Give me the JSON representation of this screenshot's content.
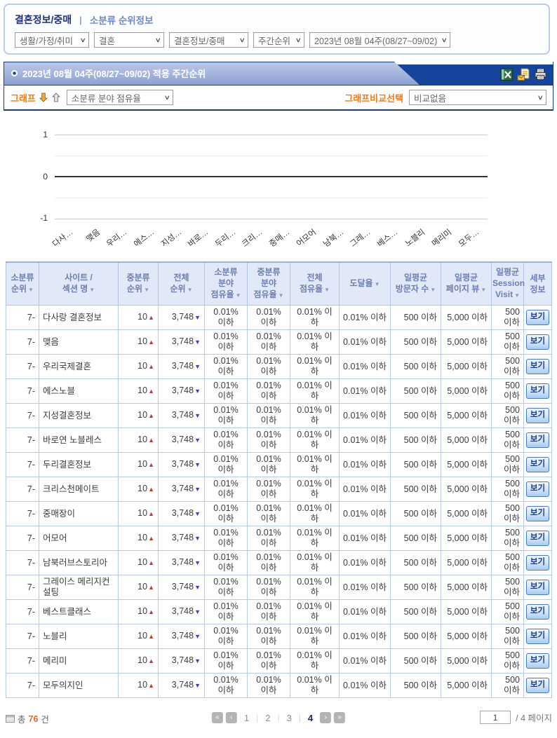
{
  "colors": {
    "accent_orange": "#ee7b17",
    "bar_dark_blue": "#17449b",
    "bar_light_blue": "#9fb0da",
    "table_border": "#b9c9ea",
    "header_text": "#6d7eb0",
    "rank_up_red": "#c13a3a",
    "rank_down_blue": "#3a41bd"
  },
  "breadcrumb": {
    "category": "결혼정보/중매",
    "separator": "|",
    "section": "소분류 순위정보"
  },
  "filters": {
    "arrow": "∨",
    "selects": [
      {
        "id": "category-large",
        "value": "생활/가정/취미"
      },
      {
        "id": "category-mid",
        "value": "결혼"
      },
      {
        "id": "category-small",
        "value": "결혼정보/중매"
      },
      {
        "id": "period-type",
        "value": "주간순위"
      },
      {
        "id": "week",
        "value": "2023년 08월 04주(08/27~09/02)"
      }
    ]
  },
  "title_bar": {
    "title": "2023년 08월 04주(08/27~09/02) 적용 주간순위",
    "icons": [
      "excel-export-icon",
      "email-report-icon",
      "print-icon"
    ]
  },
  "graph_controls": {
    "graph_label": "그래프",
    "graph_metric_select": "소분류 분야 점유율",
    "compare_label": "그래프비교선택",
    "compare_select": "비교없음"
  },
  "chart_data": {
    "type": "column",
    "title": "",
    "xlabel": "",
    "ylabel": "",
    "categories": [
      "다사…",
      "맺음",
      "우리…",
      "에스…",
      "지성…",
      "바로…",
      "두리…",
      "크리…",
      "중매…",
      "어모어",
      "남북…",
      "그레…",
      "베스…",
      "노블리",
      "메리미",
      "모두…"
    ],
    "series": [],
    "ylim": [
      -1,
      1
    ],
    "yticks": [
      1,
      0,
      -1
    ],
    "baseline": 0,
    "grid": true,
    "legend": "none"
  },
  "table": {
    "sort_arrow": "▼",
    "up_arrow": "▲",
    "down_arrow": "▼",
    "columns": [
      {
        "id": "sub-rank",
        "lines": [
          "소분류",
          "순위"
        ],
        "sortable": true
      },
      {
        "id": "site-name",
        "lines": [
          "사이트 /",
          "섹션 명"
        ],
        "sortable": true
      },
      {
        "id": "mid-rank",
        "lines": [
          "중분류",
          "순위"
        ],
        "sortable": true
      },
      {
        "id": "total-rank",
        "lines": [
          "전체",
          "순위"
        ],
        "sortable": true
      },
      {
        "id": "sub-share",
        "lines": [
          "소분류",
          "분야",
          "점유율"
        ],
        "sortable": true
      },
      {
        "id": "mid-share",
        "lines": [
          "중분류",
          "분야",
          "점유율"
        ],
        "sortable": true
      },
      {
        "id": "total-share",
        "lines": [
          "전체",
          "점유율"
        ],
        "sortable": true
      },
      {
        "id": "reach",
        "lines": [
          "도달율"
        ],
        "sortable": true
      },
      {
        "id": "daily-visitors",
        "lines": [
          "일평균",
          "방문자 수"
        ],
        "sortable": true
      },
      {
        "id": "daily-pageviews",
        "lines": [
          "일평균",
          "페이지 뷰"
        ],
        "sortable": true
      },
      {
        "id": "daily-session-visit",
        "lines": [
          "일평균",
          "Session",
          "Visit"
        ],
        "sortable": true
      },
      {
        "id": "detail",
        "lines": [
          "세부",
          "정보"
        ],
        "sortable": false
      }
    ],
    "rows": [
      {
        "sub_rank": "7-",
        "site": "다사랑 결혼정보",
        "mid_rank": "10",
        "total_rank": "3,748",
        "sub_share": "0.01% 이하",
        "mid_share": "0.01% 이하",
        "total_share": "0.01% 이하",
        "reach": "0.01% 이하",
        "visitors": "500 이하",
        "pageviews": "5,000 이하",
        "session": "500 이하",
        "detail": "보기"
      },
      {
        "sub_rank": "7-",
        "site": "맺음",
        "mid_rank": "10",
        "total_rank": "3,748",
        "sub_share": "0.01% 이하",
        "mid_share": "0.01% 이하",
        "total_share": "0.01% 이하",
        "reach": "0.01% 이하",
        "visitors": "500 이하",
        "pageviews": "5,000 이하",
        "session": "500 이하",
        "detail": "보기"
      },
      {
        "sub_rank": "7-",
        "site": "우리국제결혼",
        "mid_rank": "10",
        "total_rank": "3,748",
        "sub_share": "0.01% 이하",
        "mid_share": "0.01% 이하",
        "total_share": "0.01% 이하",
        "reach": "0.01% 이하",
        "visitors": "500 이하",
        "pageviews": "5,000 이하",
        "session": "500 이하",
        "detail": "보기"
      },
      {
        "sub_rank": "7-",
        "site": "에스노블",
        "mid_rank": "10",
        "total_rank": "3,748",
        "sub_share": "0.01% 이하",
        "mid_share": "0.01% 이하",
        "total_share": "0.01% 이하",
        "reach": "0.01% 이하",
        "visitors": "500 이하",
        "pageviews": "5,000 이하",
        "session": "500 이하",
        "detail": "보기"
      },
      {
        "sub_rank": "7-",
        "site": "지성결혼정보",
        "mid_rank": "10",
        "total_rank": "3,748",
        "sub_share": "0.01% 이하",
        "mid_share": "0.01% 이하",
        "total_share": "0.01% 이하",
        "reach": "0.01% 이하",
        "visitors": "500 이하",
        "pageviews": "5,000 이하",
        "session": "500 이하",
        "detail": "보기"
      },
      {
        "sub_rank": "7-",
        "site": "바로연 노블레스",
        "mid_rank": "10",
        "total_rank": "3,748",
        "sub_share": "0.01% 이하",
        "mid_share": "0.01% 이하",
        "total_share": "0.01% 이하",
        "reach": "0.01% 이하",
        "visitors": "500 이하",
        "pageviews": "5,000 이하",
        "session": "500 이하",
        "detail": "보기"
      },
      {
        "sub_rank": "7-",
        "site": "두리결혼정보",
        "mid_rank": "10",
        "total_rank": "3,748",
        "sub_share": "0.01% 이하",
        "mid_share": "0.01% 이하",
        "total_share": "0.01% 이하",
        "reach": "0.01% 이하",
        "visitors": "500 이하",
        "pageviews": "5,000 이하",
        "session": "500 이하",
        "detail": "보기"
      },
      {
        "sub_rank": "7-",
        "site": "크리스천메이트",
        "mid_rank": "10",
        "total_rank": "3,748",
        "sub_share": "0.01% 이하",
        "mid_share": "0.01% 이하",
        "total_share": "0.01% 이하",
        "reach": "0.01% 이하",
        "visitors": "500 이하",
        "pageviews": "5,000 이하",
        "session": "500 이하",
        "detail": "보기"
      },
      {
        "sub_rank": "7-",
        "site": "중매장이",
        "mid_rank": "10",
        "total_rank": "3,748",
        "sub_share": "0.01% 이하",
        "mid_share": "0.01% 이하",
        "total_share": "0.01% 이하",
        "reach": "0.01% 이하",
        "visitors": "500 이하",
        "pageviews": "5,000 이하",
        "session": "500 이하",
        "detail": "보기"
      },
      {
        "sub_rank": "7-",
        "site": "어모어",
        "mid_rank": "10",
        "total_rank": "3,748",
        "sub_share": "0.01% 이하",
        "mid_share": "0.01% 이하",
        "total_share": "0.01% 이하",
        "reach": "0.01% 이하",
        "visitors": "500 이하",
        "pageviews": "5,000 이하",
        "session": "500 이하",
        "detail": "보기"
      },
      {
        "sub_rank": "7-",
        "site": "남북러브스토리아",
        "mid_rank": "10",
        "total_rank": "3,748",
        "sub_share": "0.01% 이하",
        "mid_share": "0.01% 이하",
        "total_share": "0.01% 이하",
        "reach": "0.01% 이하",
        "visitors": "500 이하",
        "pageviews": "5,000 이하",
        "session": "500 이하",
        "detail": "보기"
      },
      {
        "sub_rank": "7-",
        "site": "그레이스 메리지컨설팅",
        "mid_rank": "10",
        "total_rank": "3,748",
        "sub_share": "0.01% 이하",
        "mid_share": "0.01% 이하",
        "total_share": "0.01% 이하",
        "reach": "0.01% 이하",
        "visitors": "500 이하",
        "pageviews": "5,000 이하",
        "session": "500 이하",
        "detail": "보기"
      },
      {
        "sub_rank": "7-",
        "site": "베스트클래스",
        "mid_rank": "10",
        "total_rank": "3,748",
        "sub_share": "0.01% 이하",
        "mid_share": "0.01% 이하",
        "total_share": "0.01% 이하",
        "reach": "0.01% 이하",
        "visitors": "500 이하",
        "pageviews": "5,000 이하",
        "session": "500 이하",
        "detail": "보기"
      },
      {
        "sub_rank": "7-",
        "site": "노블리",
        "mid_rank": "10",
        "total_rank": "3,748",
        "sub_share": "0.01% 이하",
        "mid_share": "0.01% 이하",
        "total_share": "0.01% 이하",
        "reach": "0.01% 이하",
        "visitors": "500 이하",
        "pageviews": "5,000 이하",
        "session": "500 이하",
        "detail": "보기"
      },
      {
        "sub_rank": "7-",
        "site": "메리미",
        "mid_rank": "10",
        "total_rank": "3,748",
        "sub_share": "0.01% 이하",
        "mid_share": "0.01% 이하",
        "total_share": "0.01% 이하",
        "reach": "0.01% 이하",
        "visitors": "500 이하",
        "pageviews": "5,000 이하",
        "session": "500 이하",
        "detail": "보기"
      },
      {
        "sub_rank": "7-",
        "site": "모두의지인",
        "mid_rank": "10",
        "total_rank": "3,748",
        "sub_share": "0.01% 이하",
        "mid_share": "0.01% 이하",
        "total_share": "0.01% 이하",
        "reach": "0.01% 이하",
        "visitors": "500 이하",
        "pageviews": "5,000 이하",
        "session": "500 이하",
        "detail": "보기"
      }
    ]
  },
  "footer": {
    "total_prefix": "총",
    "total_count": "76",
    "total_suffix": "건",
    "pagination": {
      "first": "«",
      "prev": "‹",
      "next": "›",
      "last": "»",
      "separator": "|",
      "pages": [
        "1",
        "2",
        "3",
        "4"
      ],
      "current": "4"
    },
    "page_input_value": "1",
    "page_suffix": "/ 4 페이지"
  }
}
